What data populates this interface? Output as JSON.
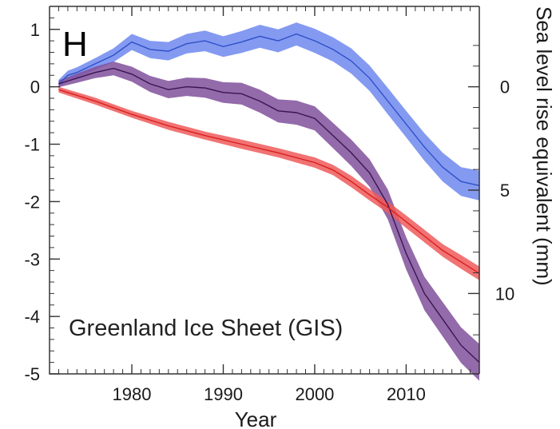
{
  "chart_data": {
    "type": "area",
    "panel_label": "H",
    "annotation": "Greenland Ice Sheet (GIS)",
    "xlabel": "Year",
    "ylabel_left": "",
    "ylabel_right": "Sea level rise equivalent (mm)",
    "xlim": [
      1971,
      2018
    ],
    "ylim": [
      -5,
      1.4
    ],
    "x_ticks": [
      1980,
      1990,
      2000,
      2010
    ],
    "y_ticks": [
      1,
      0,
      -1,
      -2,
      -3,
      -4,
      -5
    ],
    "y_tick_labels": [
      "1",
      "0",
      "-1",
      "-2",
      "-3",
      "-4",
      "-5"
    ],
    "right_axis": {
      "ticks_mm": [
        0,
        5,
        10
      ],
      "tick_labels": [
        "0",
        "5",
        "10"
      ],
      "minor_ticks_mm": [
        -2,
        -1,
        1,
        2,
        3,
        4,
        6,
        7,
        8,
        9,
        11,
        12
      ]
    },
    "series": [
      {
        "name": "blue",
        "color": "#6f88ee",
        "line_color": "#3050c8",
        "x": [
          1972,
          1973,
          1974,
          1976,
          1978,
          1980,
          1982,
          1984,
          1986,
          1988,
          1990,
          1992,
          1994,
          1996,
          1998,
          2000,
          2002,
          2004,
          2006,
          2008,
          2010,
          2012,
          2014,
          2016,
          2018
        ],
        "y": [
          0.05,
          0.2,
          0.25,
          0.4,
          0.55,
          0.78,
          0.65,
          0.62,
          0.75,
          0.8,
          0.7,
          0.78,
          0.88,
          0.8,
          0.92,
          0.8,
          0.65,
          0.45,
          0.15,
          -0.25,
          -0.65,
          -1.05,
          -1.4,
          -1.65,
          -1.72
        ],
        "band": [
          0.07,
          0.08,
          0.09,
          0.1,
          0.12,
          0.14,
          0.15,
          0.16,
          0.17,
          0.18,
          0.18,
          0.19,
          0.2,
          0.2,
          0.2,
          0.21,
          0.21,
          0.22,
          0.22,
          0.23,
          0.23,
          0.24,
          0.25,
          0.25,
          0.26
        ]
      },
      {
        "name": "purple",
        "color": "#80509b",
        "line_color": "#3d1452",
        "x": [
          1972,
          1974,
          1976,
          1978,
          1980,
          1982,
          1984,
          1986,
          1988,
          1990,
          1992,
          1994,
          1996,
          1998,
          2000,
          2002,
          2004,
          2006,
          2008,
          2010,
          2012,
          2014,
          2016,
          2018
        ],
        "y": [
          0.05,
          0.15,
          0.25,
          0.32,
          0.22,
          0.05,
          -0.05,
          0.0,
          -0.02,
          -0.1,
          -0.12,
          -0.25,
          -0.42,
          -0.45,
          -0.55,
          -0.85,
          -1.15,
          -1.5,
          -2.05,
          -2.9,
          -3.6,
          -4.05,
          -4.5,
          -4.8
        ],
        "band": [
          0.06,
          0.08,
          0.1,
          0.12,
          0.13,
          0.14,
          0.15,
          0.16,
          0.17,
          0.18,
          0.19,
          0.2,
          0.2,
          0.21,
          0.21,
          0.22,
          0.23,
          0.24,
          0.26,
          0.28,
          0.29,
          0.3,
          0.31,
          0.32
        ]
      },
      {
        "name": "red",
        "color": "#ef5a5a",
        "line_color": "#d91e1e",
        "x": [
          1972,
          1976,
          1980,
          1984,
          1988,
          1992,
          1996,
          2000,
          2002,
          2004,
          2006,
          2008,
          2010,
          2012,
          2014,
          2016,
          2018
        ],
        "y": [
          -0.05,
          -0.25,
          -0.48,
          -0.68,
          -0.85,
          -1.0,
          -1.15,
          -1.32,
          -1.45,
          -1.65,
          -1.88,
          -2.1,
          -2.35,
          -2.6,
          -2.85,
          -3.05,
          -3.25
        ],
        "band": [
          0.05,
          0.06,
          0.06,
          0.07,
          0.07,
          0.08,
          0.08,
          0.09,
          0.09,
          0.1,
          0.1,
          0.1,
          0.11,
          0.11,
          0.11,
          0.12,
          0.12
        ]
      }
    ]
  }
}
